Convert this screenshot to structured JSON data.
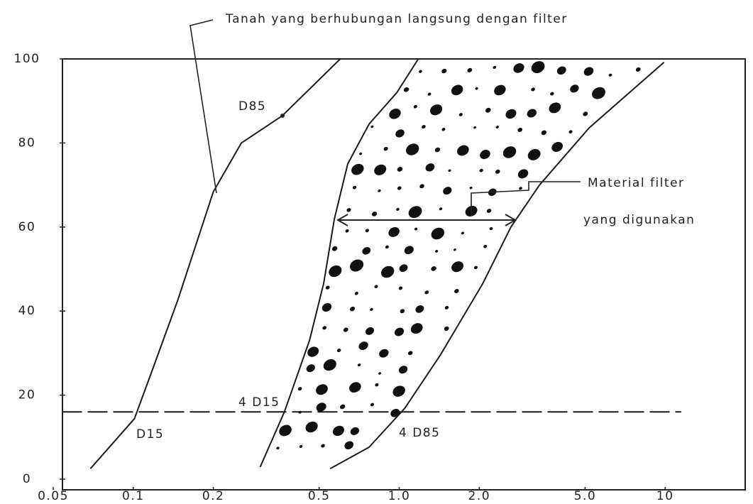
{
  "chart_data": {
    "type": "line",
    "xscale": "log",
    "xlim": [
      0.05,
      20
    ],
    "ylim": [
      0,
      100
    ],
    "xticks": [
      0.05,
      0.1,
      0.2,
      0.5,
      {
        "value": 1,
        "label": "1.0"
      },
      {
        "value": 2,
        "label": "2.0"
      },
      {
        "value": 5,
        "label": "5.0"
      },
      10
    ],
    "yticks": [
      0,
      20,
      40,
      60,
      80,
      100
    ],
    "color": "#1a1a1a",
    "series": [
      {
        "x": [
          0.069,
          0.101,
          0.118,
          0.147,
          0.2,
          0.255,
          0.364,
          0.6
        ],
        "values": [
          2.5,
          14.4,
          26,
          42.6,
          68.4,
          80,
          86.5,
          100
        ]
      },
      {
        "x": [
          0.3,
          0.37,
          0.46,
          0.52,
          0.57,
          0.64,
          0.77,
          0.98,
          1.18
        ],
        "values": [
          2.9,
          16,
          33,
          46.6,
          61.8,
          75,
          84.5,
          92,
          100
        ]
      },
      {
        "x": [
          0.55,
          0.77,
          1.05,
          1.43,
          2.06,
          2.63,
          3.37,
          5.18,
          9.9
        ],
        "values": [
          2.5,
          7.6,
          16.9,
          29.6,
          46.5,
          60,
          70,
          83.6,
          99.2
        ]
      },
      {
        "x": [
          0.054,
          11.5
        ],
        "values": [
          16,
          16
        ],
        "dashed": true
      }
    ],
    "annotations": [
      "Tanah yang berhubungan langsung dengan filter",
      "D85",
      "Material filter",
      "yang digunakan",
      "4 D15",
      "D15",
      "4 D85"
    ]
  }
}
